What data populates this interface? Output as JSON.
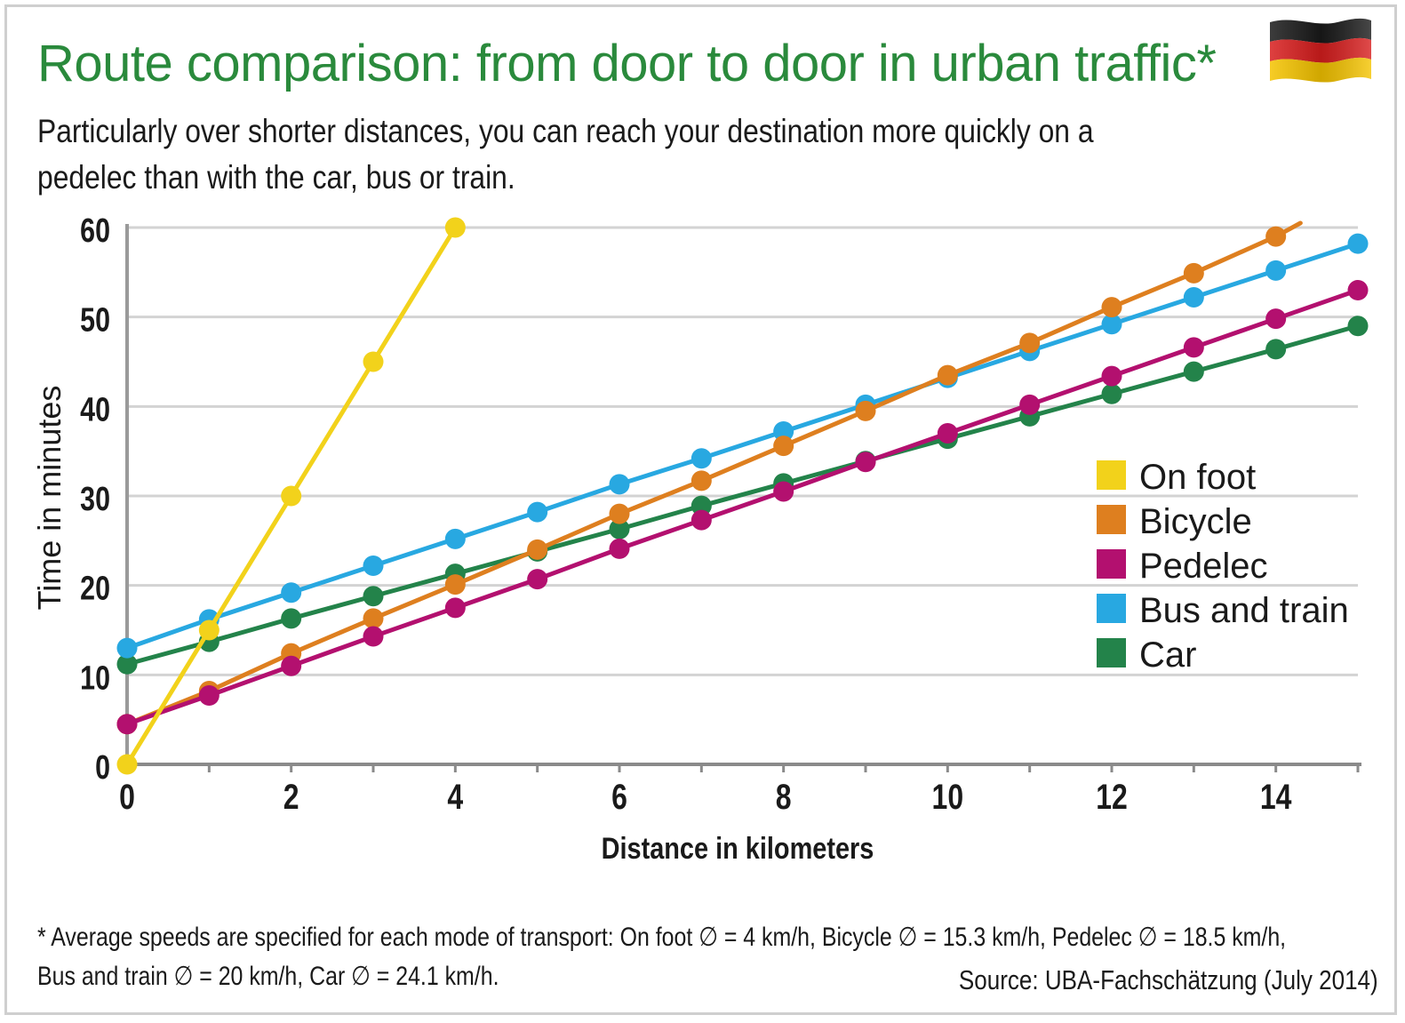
{
  "header": {
    "title": "Route comparison: from door to door in urban traffic*",
    "subtitle": "Particularly over shorter distances, you can reach your destination more quickly on a pedelec than with the car, bus or train."
  },
  "footer": {
    "footnote_line1": "* Average speeds are specified for each mode of transport: On foot ∅ = 4 km/h, Bicycle ∅ = 15.3 km/h, Pedelec ∅ = 18.5 km/h,",
    "footnote_line2": "Bus and train ∅ = 20 km/h, Car ∅ = 24.1 km/h.",
    "source": "Source: UBA-Fachschätzung (July 2014)"
  },
  "flag_icon": "germany-flag-icon",
  "colors": {
    "title_green": "#2a8a3c",
    "grid": "#d3d3d3",
    "axis": "#9a9a9a"
  },
  "chart_data": {
    "type": "line",
    "xlabel": "Distance in kilometers",
    "ylabel": "Time in minutes",
    "xlim": [
      0,
      15
    ],
    "ylim": [
      0,
      60
    ],
    "xticks": [
      0,
      2,
      4,
      6,
      8,
      10,
      12,
      14
    ],
    "yticks": [
      0,
      10,
      20,
      30,
      40,
      50,
      60
    ],
    "grid": true,
    "legend_position": "right",
    "series": [
      {
        "name": "On foot",
        "color": "#f2d21b",
        "x": [
          0,
          1,
          2,
          3,
          4
        ],
        "y": [
          0,
          15,
          30,
          45,
          60
        ]
      },
      {
        "name": "Bicycle",
        "color": "#de7f1f",
        "x": [
          0,
          1,
          2,
          3,
          4,
          5,
          6,
          7,
          8,
          9,
          10,
          11,
          12,
          13,
          14
        ],
        "y": [
          4.5,
          8.2,
          12.4,
          16.3,
          20.1,
          24.0,
          28.0,
          31.7,
          35.6,
          39.5,
          43.5,
          47.1,
          51.1,
          54.9,
          59.0
        ],
        "line_end": [
          14.3,
          60.5
        ]
      },
      {
        "name": "Pedelec",
        "color": "#b3106f",
        "x": [
          0,
          1,
          2,
          3,
          4,
          5,
          6,
          7,
          8,
          9,
          10,
          11,
          12,
          13,
          14,
          15
        ],
        "y": [
          4.5,
          7.7,
          11.0,
          14.3,
          17.5,
          20.7,
          24.1,
          27.3,
          30.5,
          33.8,
          37.0,
          40.2,
          43.4,
          46.6,
          49.8,
          53.0
        ]
      },
      {
        "name": "Bus and train",
        "color": "#28a8e1",
        "x": [
          0,
          1,
          2,
          3,
          4,
          5,
          6,
          7,
          8,
          9,
          10,
          11,
          12,
          13,
          14,
          15
        ],
        "y": [
          13.0,
          16.2,
          19.2,
          22.2,
          25.2,
          28.2,
          31.3,
          34.2,
          37.2,
          40.2,
          43.2,
          46.2,
          49.2,
          52.2,
          55.2,
          58.2
        ]
      },
      {
        "name": "Car",
        "color": "#23834a",
        "x": [
          0,
          1,
          2,
          3,
          4,
          5,
          6,
          7,
          8,
          9,
          10,
          11,
          12,
          13,
          14,
          15
        ],
        "y": [
          11.2,
          13.7,
          16.3,
          18.8,
          21.3,
          23.8,
          26.3,
          28.9,
          31.4,
          33.9,
          36.4,
          38.9,
          41.4,
          43.9,
          46.4,
          49.0
        ]
      }
    ]
  }
}
